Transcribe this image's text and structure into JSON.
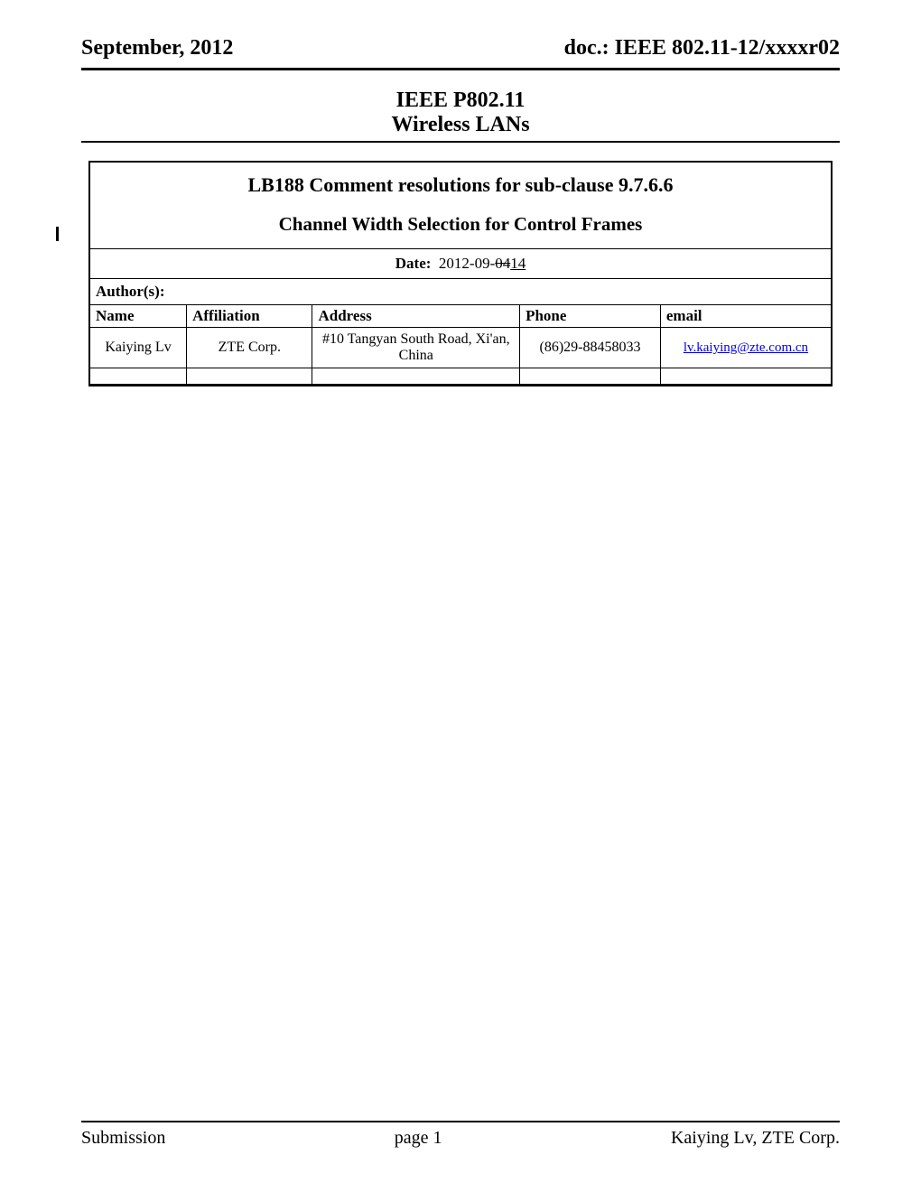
{
  "header": {
    "left": "September, 2012",
    "right": "doc.: IEEE 802.11-12/xxxxr02"
  },
  "doc_header": {
    "line1": "IEEE P802.11",
    "line2": "Wireless LANs"
  },
  "title": {
    "main": "LB188 Comment resolutions for sub-clause 9.7.6.6",
    "sub": "Channel Width Selection for Control Frames"
  },
  "date": {
    "label": "Date:",
    "prefix": "2012-09-",
    "struck": "04",
    "inserted": "14"
  },
  "authors_label": "Author(s):",
  "author_table": {
    "headers": {
      "name": "Name",
      "affiliation": "Affiliation",
      "address": "Address",
      "phone": "Phone",
      "email": "email"
    },
    "rows": [
      {
        "name": "Kaiying Lv",
        "affiliation": "ZTE Corp.",
        "address": "#10 Tangyan South Road, Xi'an, China",
        "phone": "(86)29-88458033",
        "email": "lv.kaiying@zte.com.cn"
      }
    ]
  },
  "footer": {
    "left": "Submission",
    "center": "page 1",
    "right": "Kaiying Lv, ZTE Corp."
  }
}
